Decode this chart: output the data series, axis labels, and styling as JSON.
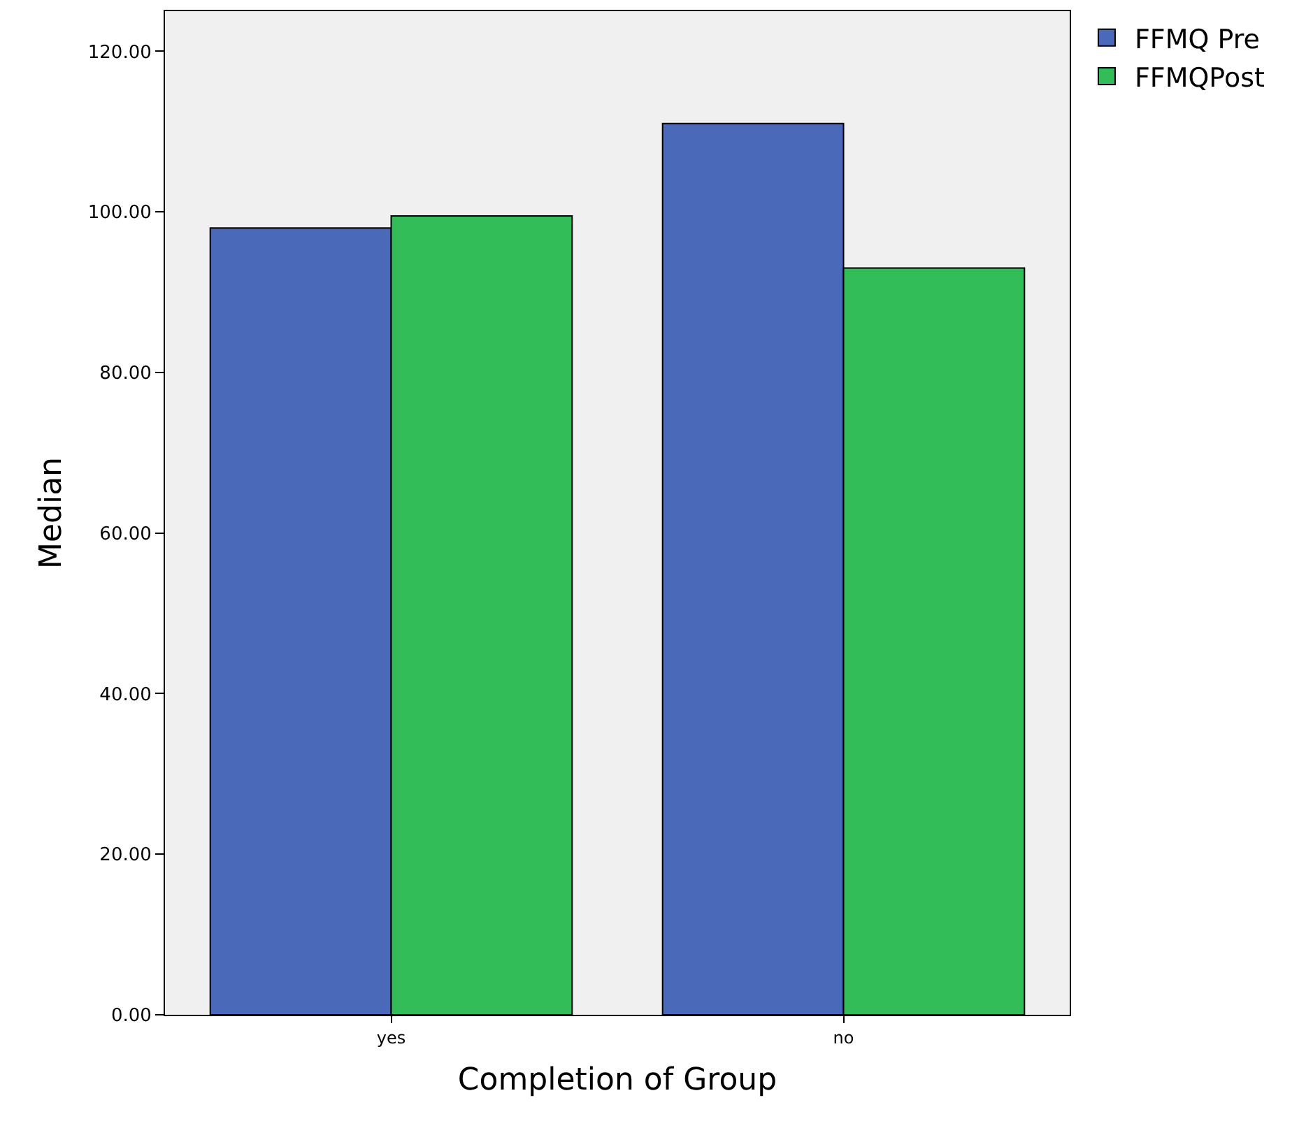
{
  "chart_data": {
    "type": "bar",
    "xlabel": "Completion of Group",
    "ylabel": "Median",
    "categories": [
      "yes",
      "no"
    ],
    "series": [
      {
        "name": "FFMQ Pre",
        "color": "#4a69b8",
        "values": [
          98,
          111
        ]
      },
      {
        "name": "FFMQPost",
        "color": "#33bd58",
        "values": [
          99.5,
          93
        ]
      }
    ],
    "ylim": [
      0,
      125
    ],
    "yticks": [
      {
        "value": 0,
        "label": "0.00"
      },
      {
        "value": 20,
        "label": "20.00"
      },
      {
        "value": 40,
        "label": "40.00"
      },
      {
        "value": 60,
        "label": "60.00"
      },
      {
        "value": 80,
        "label": "80.00"
      },
      {
        "value": 100,
        "label": "100.00"
      },
      {
        "value": 120,
        "label": "120.00"
      }
    ],
    "grid": false,
    "legend": "top right"
  }
}
